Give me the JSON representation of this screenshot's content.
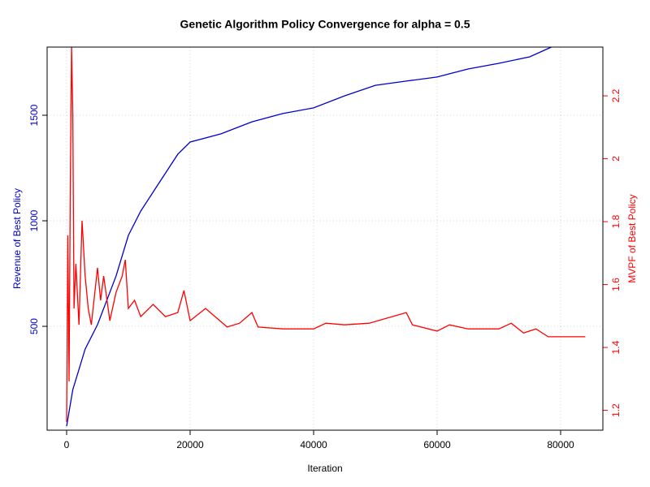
{
  "chart_data": {
    "type": "line",
    "title": "Genetic Algorithm Policy Convergence for alpha = 0.5",
    "x_label": "Iteration",
    "y_label": "Revenue of Best Policy",
    "y2_label": "MVPF of Best Policy",
    "xlim": [
      -3158,
      86842
    ],
    "ylim": [
      8,
      1823
    ],
    "y2lim": [
      1.137,
      2.355
    ],
    "xticks": [
      0,
      20000,
      40000,
      60000,
      80000
    ],
    "yticks": [
      500,
      1000,
      1500
    ],
    "y2ticks": [
      1.2,
      1.4,
      1.6,
      1.8,
      2,
      2.2
    ],
    "grid": true,
    "series": [
      {
        "name": "Revenue of Best Policy",
        "color": "#0000cc",
        "axis": "y",
        "x": [
          0,
          1000,
          3000,
          5000,
          8000,
          10000,
          12000,
          15000,
          18000,
          20000,
          25000,
          30000,
          35000,
          40000,
          45000,
          50000,
          55000,
          60000,
          65000,
          70000,
          75000,
          78500
        ],
        "values": [
          27,
          200,
          392,
          508,
          738,
          931,
          1046,
          1181,
          1315,
          1373,
          1412,
          1469,
          1508,
          1535,
          1592,
          1642,
          1662,
          1681,
          1719,
          1746,
          1777,
          1823
        ]
      },
      {
        "name": "MVPF of Best Policy",
        "color": "#ff0000",
        "axis": "y2",
        "x": [
          0,
          200,
          400,
          600,
          800,
          1000,
          1200,
          1500,
          2000,
          2500,
          3000,
          3500,
          4000,
          5000,
          5500,
          6000,
          7000,
          8000,
          9000,
          9500,
          10000,
          11000,
          12000,
          14000,
          16000,
          18000,
          19000,
          20000,
          22500,
          26000,
          28000,
          30000,
          31000,
          35000,
          38000,
          40000,
          42000,
          45000,
          49000,
          55000,
          56000,
          60000,
          62000,
          65000,
          70000,
          72000,
          74000,
          76000,
          78000,
          84000
        ],
        "values": [
          1.163,
          1.756,
          1.292,
          1.937,
          2.355,
          2.143,
          1.524,
          1.666,
          1.472,
          1.803,
          1.627,
          1.524,
          1.472,
          1.653,
          1.55,
          1.627,
          1.485,
          1.575,
          1.627,
          1.679,
          1.524,
          1.55,
          1.498,
          1.537,
          1.498,
          1.511,
          1.581,
          1.485,
          1.524,
          1.465,
          1.477,
          1.511,
          1.465,
          1.459,
          1.459,
          1.459,
          1.477,
          1.472,
          1.477,
          1.511,
          1.472,
          1.452,
          1.472,
          1.459,
          1.459,
          1.477,
          1.446,
          1.459,
          1.434,
          1.434
        ]
      }
    ]
  }
}
